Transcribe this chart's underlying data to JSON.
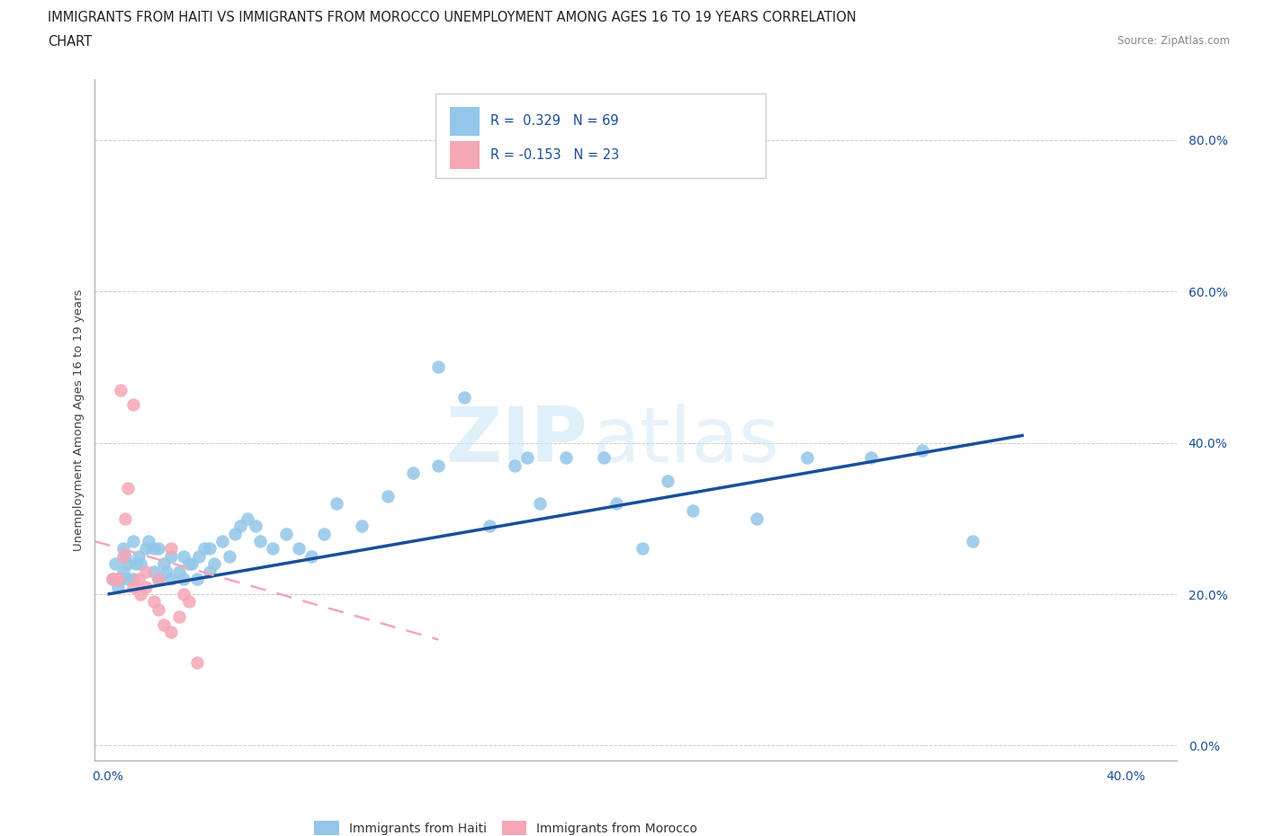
{
  "title_line1": "IMMIGRANTS FROM HAITI VS IMMIGRANTS FROM MOROCCO UNEMPLOYMENT AMONG AGES 16 TO 19 YEARS CORRELATION",
  "title_line2": "CHART",
  "source": "Source: ZipAtlas.com",
  "ylabel": "Unemployment Among Ages 16 to 19 years",
  "ytick_labels": [
    "0.0%",
    "20.0%",
    "40.0%",
    "60.0%",
    "80.0%"
  ],
  "ytick_values": [
    0,
    20,
    40,
    60,
    80
  ],
  "xtick_labels": [
    "0.0%",
    "40.0%"
  ],
  "xtick_values": [
    0,
    40
  ],
  "xlim": [
    -0.5,
    42
  ],
  "ylim": [
    -2,
    88
  ],
  "haiti_R": 0.329,
  "haiti_N": 69,
  "morocco_R": -0.153,
  "morocco_N": 23,
  "haiti_color": "#93C6E8",
  "morocco_color": "#F4A7B5",
  "haiti_line_color": "#1A4F99",
  "morocco_line_color": "#F4A7B5",
  "watermark_zip": "ZIP",
  "watermark_atlas": "atlas",
  "legend_haiti_text": "R =  0.329   N = 69",
  "legend_morocco_text": "R = -0.153   N = 23",
  "legend_haiti_label": "Immigrants from Haiti",
  "legend_morocco_label": "Immigrants from Morocco",
  "haiti_scatter_x": [
    0.2,
    0.3,
    0.4,
    0.5,
    0.6,
    0.6,
    0.7,
    0.8,
    0.8,
    1.0,
    1.0,
    1.1,
    1.2,
    1.3,
    1.5,
    1.6,
    1.8,
    1.8,
    2.0,
    2.0,
    2.2,
    2.3,
    2.5,
    2.5,
    2.8,
    3.0,
    3.0,
    3.2,
    3.3,
    3.5,
    3.6,
    3.8,
    4.0,
    4.0,
    4.2,
    4.5,
    4.8,
    5.0,
    5.2,
    5.5,
    5.8,
    6.0,
    6.5,
    7.0,
    7.5,
    8.0,
    8.5,
    9.0,
    10.0,
    11.0,
    12.0,
    13.0,
    14.0,
    15.0,
    16.0,
    17.0,
    18.0,
    19.5,
    21.0,
    23.0,
    25.5,
    27.5,
    30.0,
    32.0,
    34.0,
    13.0,
    16.5,
    20.0,
    22.0
  ],
  "haiti_scatter_y": [
    22,
    24,
    21,
    22,
    26,
    23,
    25,
    24,
    22,
    27,
    22,
    24,
    25,
    24,
    26,
    27,
    26,
    23,
    22,
    26,
    24,
    23,
    22,
    25,
    23,
    25,
    22,
    24,
    24,
    22,
    25,
    26,
    26,
    23,
    24,
    27,
    25,
    28,
    29,
    30,
    29,
    27,
    26,
    28,
    26,
    25,
    28,
    32,
    29,
    33,
    36,
    37,
    46,
    29,
    37,
    32,
    38,
    38,
    26,
    31,
    30,
    38,
    38,
    39,
    27,
    50,
    38,
    32,
    35
  ],
  "morocco_scatter_x": [
    0.2,
    0.3,
    0.4,
    0.5,
    0.6,
    0.7,
    0.8,
    1.0,
    1.0,
    1.2,
    1.3,
    1.5,
    1.5,
    1.8,
    2.0,
    2.0,
    2.2,
    2.5,
    2.5,
    2.8,
    3.0,
    3.2,
    3.5
  ],
  "morocco_scatter_y": [
    22,
    22,
    22,
    47,
    25,
    30,
    34,
    21,
    45,
    22,
    20,
    21,
    23,
    19,
    22,
    18,
    16,
    26,
    15,
    17,
    20,
    19,
    11
  ],
  "haiti_trend_x": [
    0,
    36
  ],
  "haiti_trend_y": [
    20,
    41
  ],
  "morocco_trend_x": [
    -0.5,
    13
  ],
  "morocco_trend_y": [
    27,
    14
  ]
}
